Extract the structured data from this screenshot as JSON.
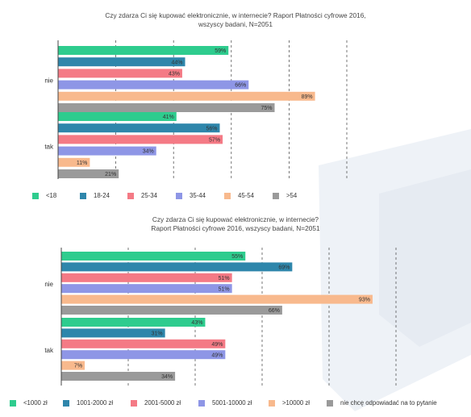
{
  "chart_data": [
    {
      "type": "bar",
      "orientation": "horizontal",
      "title_lines": [
        "Czy zdarza Ci się kupować elektronicznie, w internecie? Raport Płatności cyfrowe 2016,",
        "wszyscy badani, N=2051"
      ],
      "categories": [
        "nie",
        "tak"
      ],
      "xlim": [
        0,
        100
      ],
      "value_suffix": "%",
      "series": [
        {
          "name": "<18",
          "color": "#2ecc8e",
          "values": [
            59,
            41
          ]
        },
        {
          "name": "18-24",
          "color": "#2e86ab",
          "values": [
            44,
            56
          ]
        },
        {
          "name": "25-34",
          "color": "#f47a85",
          "values": [
            43,
            57
          ]
        },
        {
          "name": "35-44",
          "color": "#8e96e6",
          "values": [
            66,
            34
          ]
        },
        {
          "name": "45-54",
          "color": "#f8b98d",
          "values": [
            89,
            11
          ]
        },
        {
          "name": ">54",
          "color": "#9a9a9a",
          "values": [
            75,
            21
          ]
        }
      ]
    },
    {
      "type": "bar",
      "orientation": "horizontal",
      "title_lines": [
        "Czy zdarza Ci się kupować elektronicznie, w internecie?",
        "Raport Płatności cyfrowe 2016, wszyscy badani, N=2051"
      ],
      "categories": [
        "nie",
        "tak"
      ],
      "xlim": [
        0,
        100
      ],
      "value_suffix": "%",
      "series": [
        {
          "name": "<1000 zł",
          "color": "#2ecc8e",
          "values": [
            55,
            43
          ]
        },
        {
          "name": "1001-2000 zł",
          "color": "#2e86ab",
          "values": [
            69,
            31
          ]
        },
        {
          "name": "2001-5000 zł",
          "color": "#f47a85",
          "values": [
            51,
            49
          ]
        },
        {
          "name": "5001-10000 zł",
          "color": "#8e96e6",
          "values": [
            51,
            49
          ]
        },
        {
          "name": ">10000 zł",
          "color": "#f8b98d",
          "values": [
            93,
            7
          ]
        },
        {
          "name": "nie chcę odpowiadać na to pytanie",
          "color": "#9a9a9a",
          "values": [
            66,
            34
          ]
        }
      ]
    }
  ]
}
